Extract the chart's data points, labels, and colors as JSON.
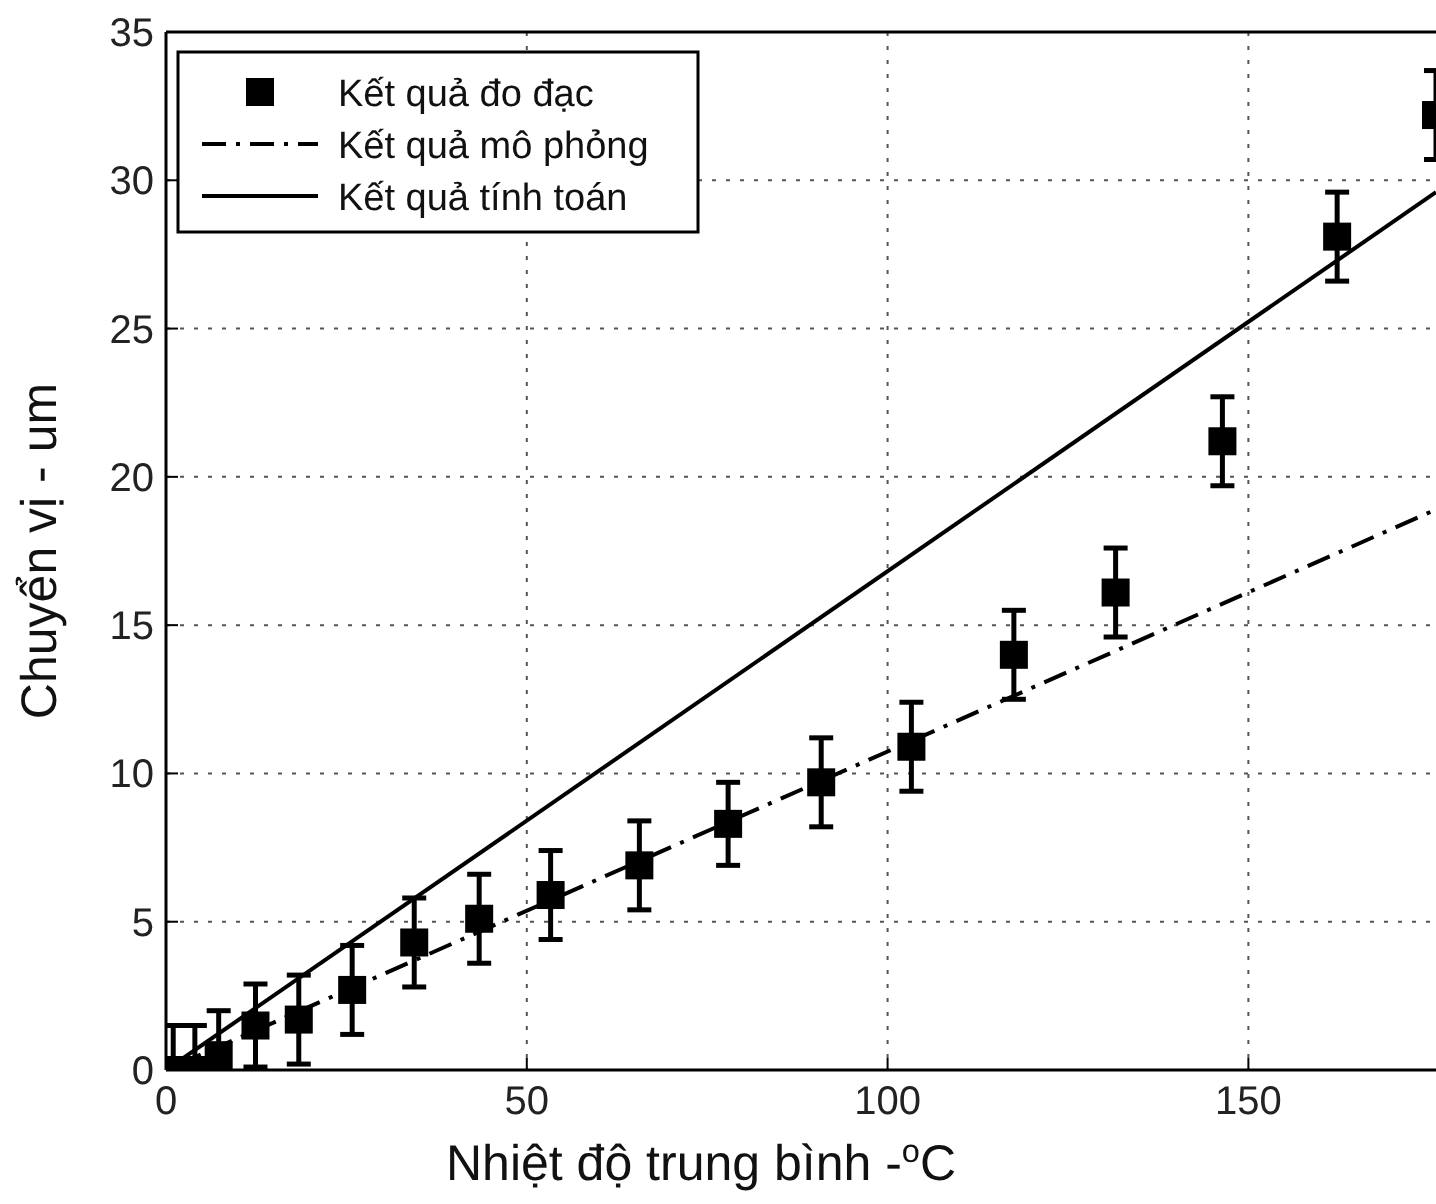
{
  "chart_data": {
    "type": "scatter",
    "xlabel": "Nhiệt độ trung bình -$^{o}$C",
    "ylabel": "Chuyển vị - um",
    "xlim": [
      0,
      176
    ],
    "xticks": [
      0,
      50,
      100,
      150
    ],
    "ylim": [
      0,
      35
    ],
    "yticks": [
      0,
      5,
      10,
      15,
      20,
      25,
      30,
      35
    ],
    "grid": true,
    "legend": "top left",
    "series": [
      {
        "name": "Kết quả đo đạc",
        "marker": "square",
        "color": "#000000",
        "x": [
          1,
          4,
          7.3,
          12.4,
          18.4,
          25.8,
          34.4,
          43.4,
          53.3,
          65.6,
          77.9,
          90.8,
          103.3,
          117.5,
          131.6,
          146.4,
          162.3,
          176
        ],
        "values": [
          0,
          0,
          0.5,
          1.5,
          1.7,
          2.7,
          4.3,
          5.1,
          5.9,
          6.9,
          8.3,
          9.7,
          10.9,
          14,
          16.1,
          21.2,
          28.1,
          32.2
        ],
        "errors": [
          1.5,
          1.5,
          1.5,
          1.4,
          1.5,
          1.5,
          1.5,
          1.5,
          1.5,
          1.5,
          1.4,
          1.5,
          1.5,
          1.5,
          1.5,
          1.5,
          1.5,
          1.5
        ]
      },
      {
        "name": "Kết quả mô phỏng",
        "type": "line",
        "line_style": "dashdot",
        "marker": "none",
        "color": "#000000",
        "x": [
          0,
          176
        ],
        "values": [
          0,
          18.9
        ]
      },
      {
        "name": "Kết quả tính toán",
        "type": "line",
        "line_style": "solid",
        "marker": "none",
        "color": "#000000",
        "x": [
          0,
          176
        ],
        "values": [
          0,
          29.6
        ]
      }
    ]
  }
}
